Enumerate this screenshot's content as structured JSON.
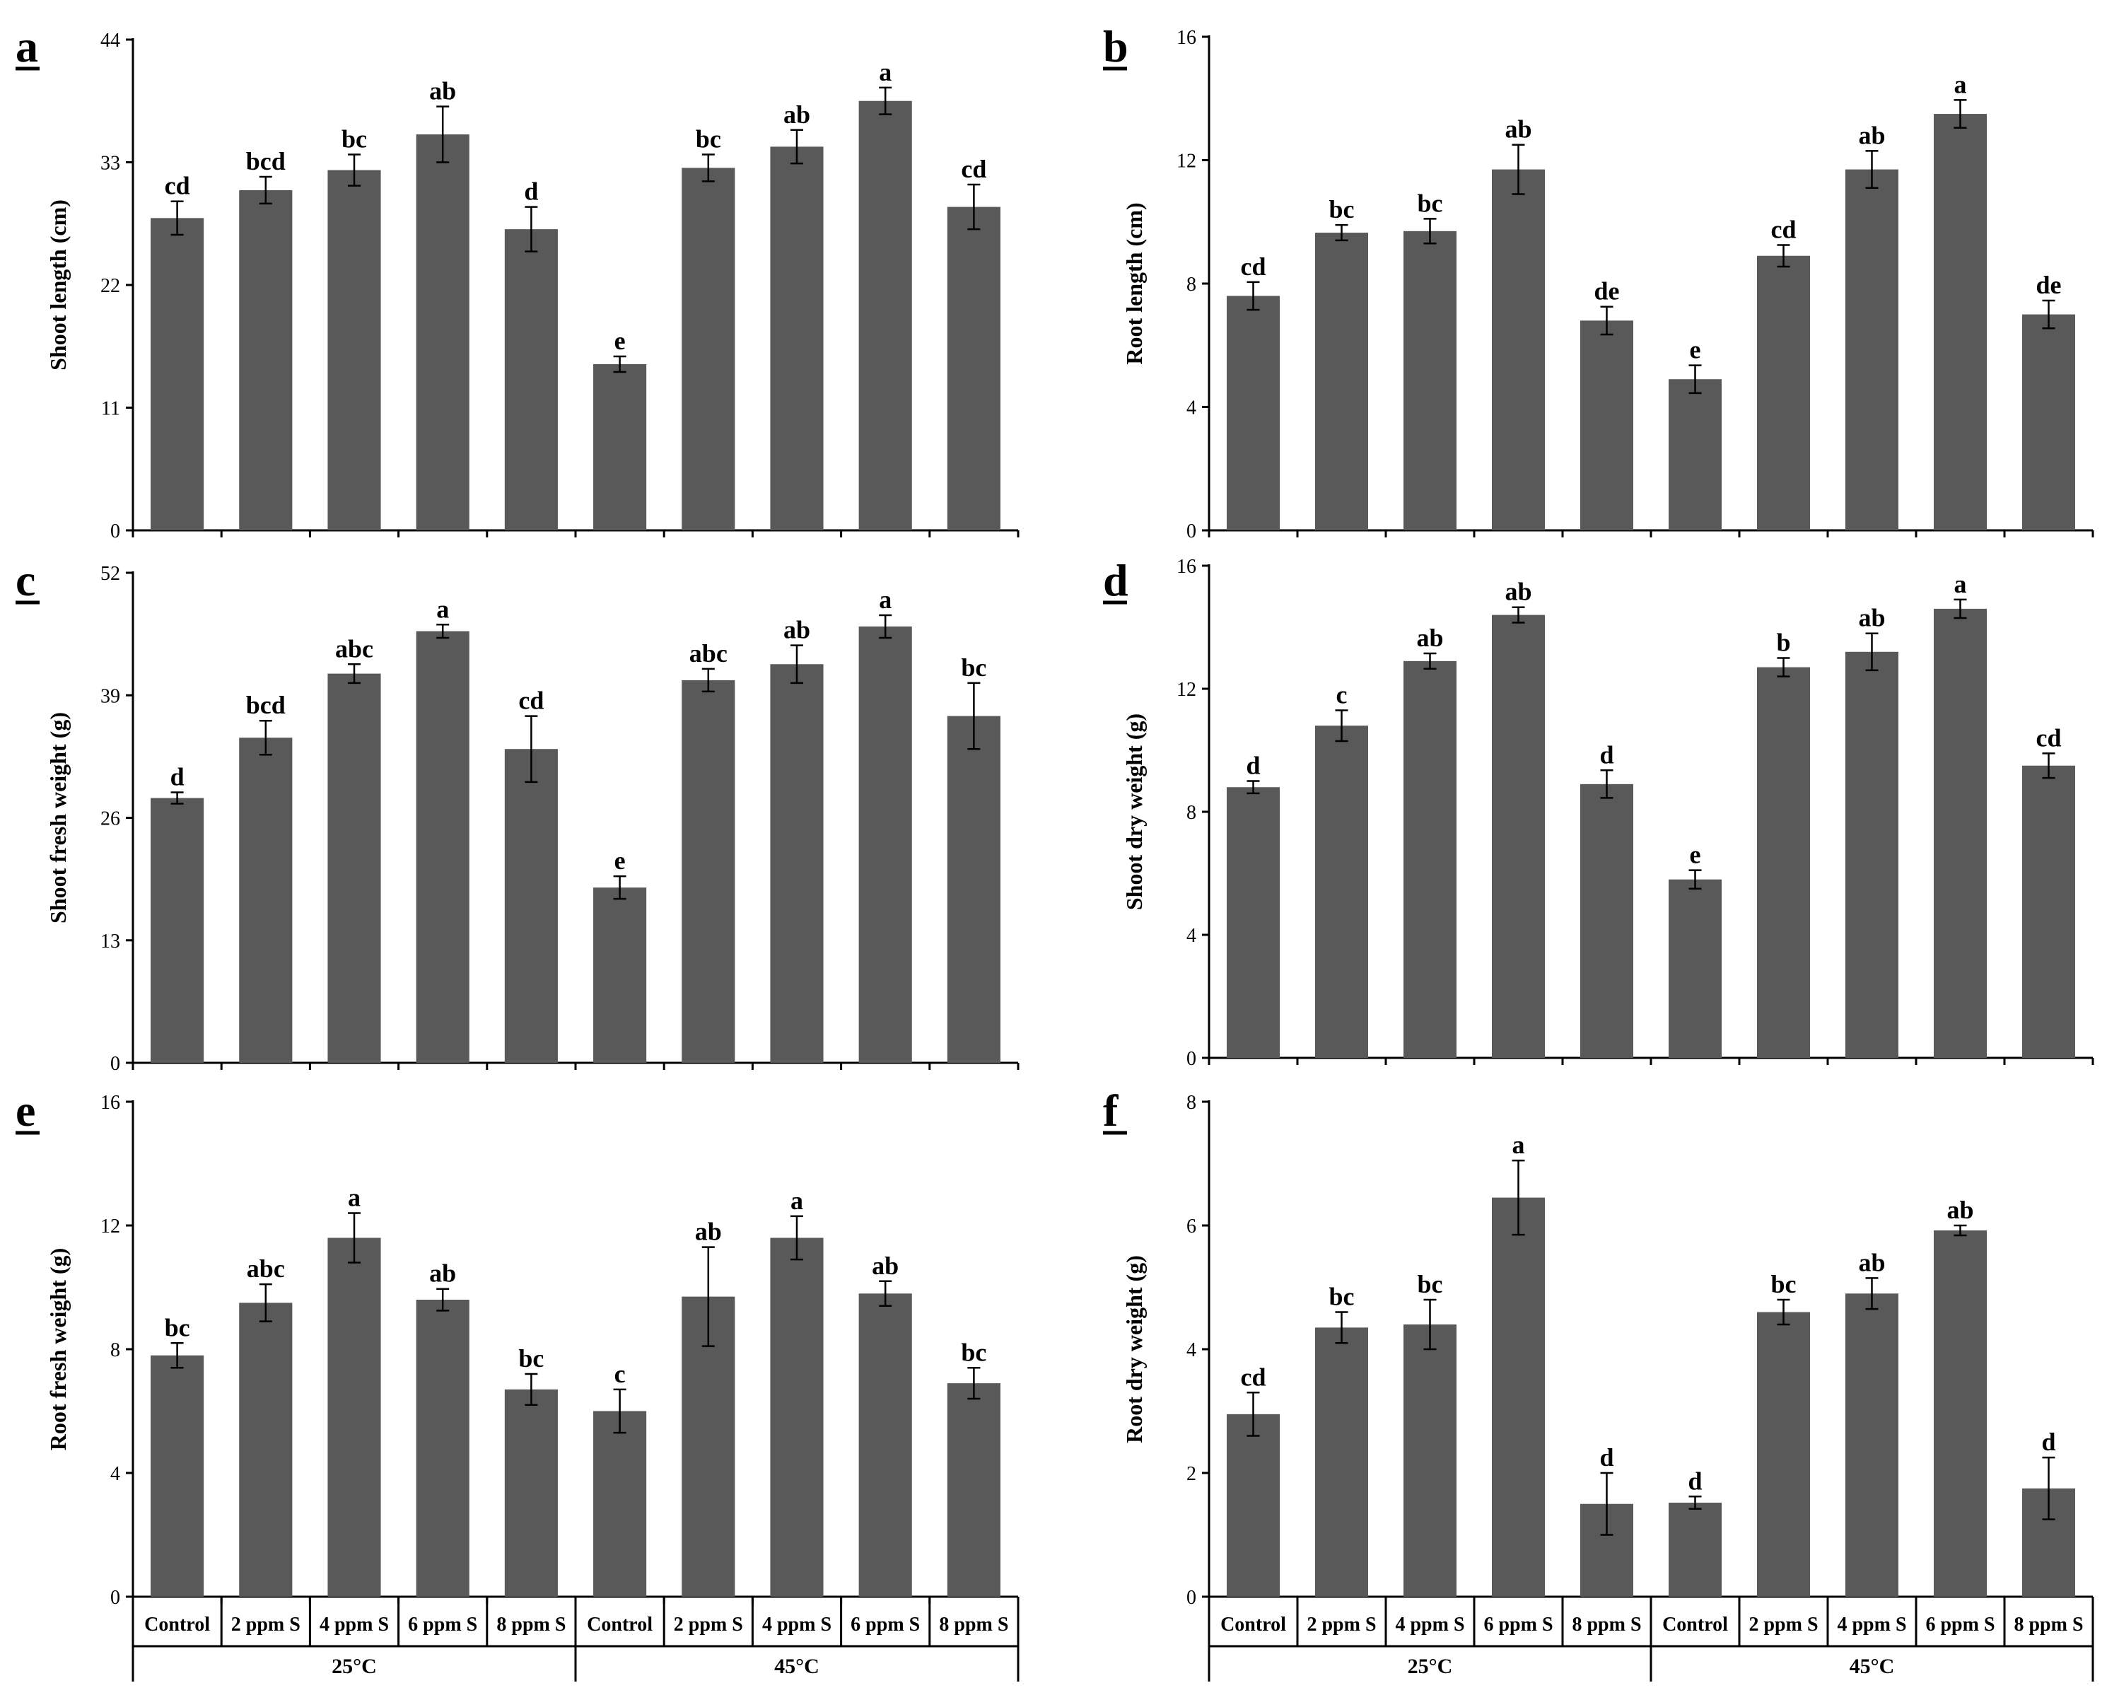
{
  "x_axis": {
    "categories": [
      "Control",
      "2 ppm S",
      "4 ppm S",
      "6 ppm S",
      "8 ppm S",
      "Control",
      "2 ppm S",
      "4 ppm S",
      "6 ppm S",
      "8 ppm S"
    ],
    "groups": [
      "25°C",
      "45°C"
    ]
  },
  "chart_data": [
    {
      "type": "bar",
      "panel": "a",
      "ylabel": "Shoot length (cm)",
      "yticks": [
        "0",
        "11",
        "22",
        "33",
        "44"
      ],
      "ylim": [
        0,
        44
      ],
      "values": [
        28,
        30.5,
        32.3,
        35.5,
        27,
        14.9,
        32.5,
        34.4,
        38.5,
        29
      ],
      "errors": [
        1.5,
        1.2,
        1.4,
        2.5,
        2.0,
        0.7,
        1.2,
        1.5,
        1.2,
        2.0
      ],
      "letters": [
        "cd",
        "bcd",
        "bc",
        "ab",
        "d",
        "e",
        "bc",
        "ab",
        "a",
        "cd"
      ]
    },
    {
      "type": "bar",
      "panel": "b",
      "ylabel": "Root length (cm)",
      "yticks": [
        "0",
        "4",
        "8",
        "12",
        "16"
      ],
      "ylim": [
        0,
        16
      ],
      "values": [
        7.6,
        9.65,
        9.7,
        11.7,
        6.8,
        4.9,
        8.9,
        11.7,
        13.5,
        7.0
      ],
      "errors": [
        0.45,
        0.25,
        0.4,
        0.8,
        0.45,
        0.45,
        0.35,
        0.6,
        0.45,
        0.45
      ],
      "letters": [
        "cd",
        "bc",
        "bc",
        "ab",
        "de",
        "e",
        "cd",
        "ab",
        "a",
        "de"
      ]
    },
    {
      "type": "bar",
      "panel": "c",
      "ylabel": "Shoot fresh weight (g)",
      "yticks": [
        "0",
        "13",
        "26",
        "39",
        "52"
      ],
      "ylim": [
        0,
        52
      ],
      "values": [
        28.1,
        34.5,
        41.3,
        45.8,
        33.3,
        18.6,
        40.6,
        42.3,
        46.3,
        36.8
      ],
      "errors": [
        0.6,
        1.8,
        1.0,
        0.7,
        3.5,
        1.2,
        1.2,
        2.0,
        1.2,
        3.5
      ],
      "letters": [
        "d",
        "bcd",
        "abc",
        "a",
        "cd",
        "e",
        "abc",
        "ab",
        "a",
        "bc"
      ]
    },
    {
      "type": "bar",
      "panel": "d",
      "ylabel": "Shoot dry weight (g)",
      "yticks": [
        "0",
        "4",
        "8",
        "12",
        "16"
      ],
      "ylim": [
        0,
        16
      ],
      "values": [
        8.8,
        10.8,
        12.9,
        14.4,
        8.9,
        5.8,
        12.7,
        13.2,
        14.6,
        9.5
      ],
      "errors": [
        0.2,
        0.5,
        0.25,
        0.25,
        0.45,
        0.3,
        0.3,
        0.6,
        0.3,
        0.4
      ],
      "letters": [
        "d",
        "c",
        "ab",
        "ab",
        "d",
        "e",
        "b",
        "ab",
        "a",
        "cd"
      ]
    },
    {
      "type": "bar",
      "panel": "e",
      "ylabel": "Root fresh weight (g)",
      "yticks": [
        "0",
        "4",
        "8",
        "12",
        "16"
      ],
      "ylim": [
        0,
        16
      ],
      "values": [
        7.8,
        9.5,
        11.6,
        9.6,
        6.7,
        6.0,
        9.7,
        11.6,
        9.8,
        6.9
      ],
      "errors": [
        0.4,
        0.6,
        0.8,
        0.35,
        0.5,
        0.7,
        1.6,
        0.7,
        0.4,
        0.5
      ],
      "letters": [
        "bc",
        "abc",
        "a",
        "ab",
        "bc",
        "c",
        "ab",
        "a",
        "ab",
        "bc"
      ]
    },
    {
      "type": "bar",
      "panel": "f",
      "ylabel": "Root dry weight (g)",
      "yticks": [
        "0",
        "2",
        "4",
        "6",
        "8"
      ],
      "ylim": [
        0,
        8
      ],
      "values": [
        2.95,
        4.35,
        4.4,
        6.45,
        1.5,
        1.52,
        4.6,
        4.9,
        5.92,
        1.75
      ],
      "errors": [
        0.35,
        0.25,
        0.4,
        0.6,
        0.5,
        0.1,
        0.2,
        0.25,
        0.08,
        0.5
      ],
      "letters": [
        "cd",
        "bc",
        "bc",
        "a",
        "d",
        "d",
        "bc",
        "ab",
        "ab",
        "d"
      ]
    }
  ]
}
